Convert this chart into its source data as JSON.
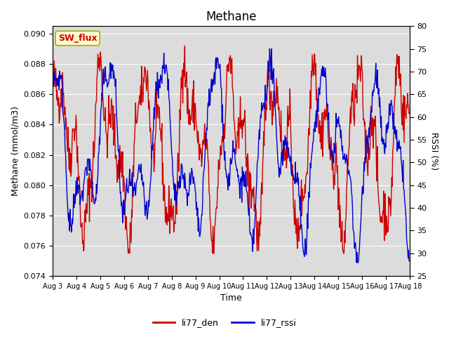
{
  "title": "Methane",
  "xlabel": "Time",
  "ylabel_left": "Methane (mmol/m3)",
  "ylabel_right": "RSSI (%)",
  "ylim_left": [
    0.074,
    0.0905
  ],
  "ylim_right": [
    25,
    80
  ],
  "yticks_left": [
    0.074,
    0.076,
    0.078,
    0.08,
    0.082,
    0.084,
    0.086,
    0.088,
    0.09
  ],
  "yticks_right": [
    25,
    30,
    35,
    40,
    45,
    50,
    55,
    60,
    65,
    70,
    75,
    80
  ],
  "xtick_labels": [
    "Aug 3",
    "Aug 4",
    "Aug 5",
    "Aug 6",
    "Aug 7",
    "Aug 8",
    "Aug 9",
    "Aug 10",
    "Aug 11",
    "Aug 12",
    "Aug 13",
    "Aug 14",
    "Aug 15",
    "Aug 16",
    "Aug 17",
    "Aug 18"
  ],
  "color_red": "#cc0000",
  "color_blue": "#0000cc",
  "legend_labels": [
    "li77_den",
    "li77_rssi"
  ],
  "annotation_text": "SW_flux",
  "annotation_bg": "#ffffcc",
  "annotation_border": "#aaaa00",
  "fig_bg": "#ffffff",
  "plot_bg": "#dcdcdc"
}
